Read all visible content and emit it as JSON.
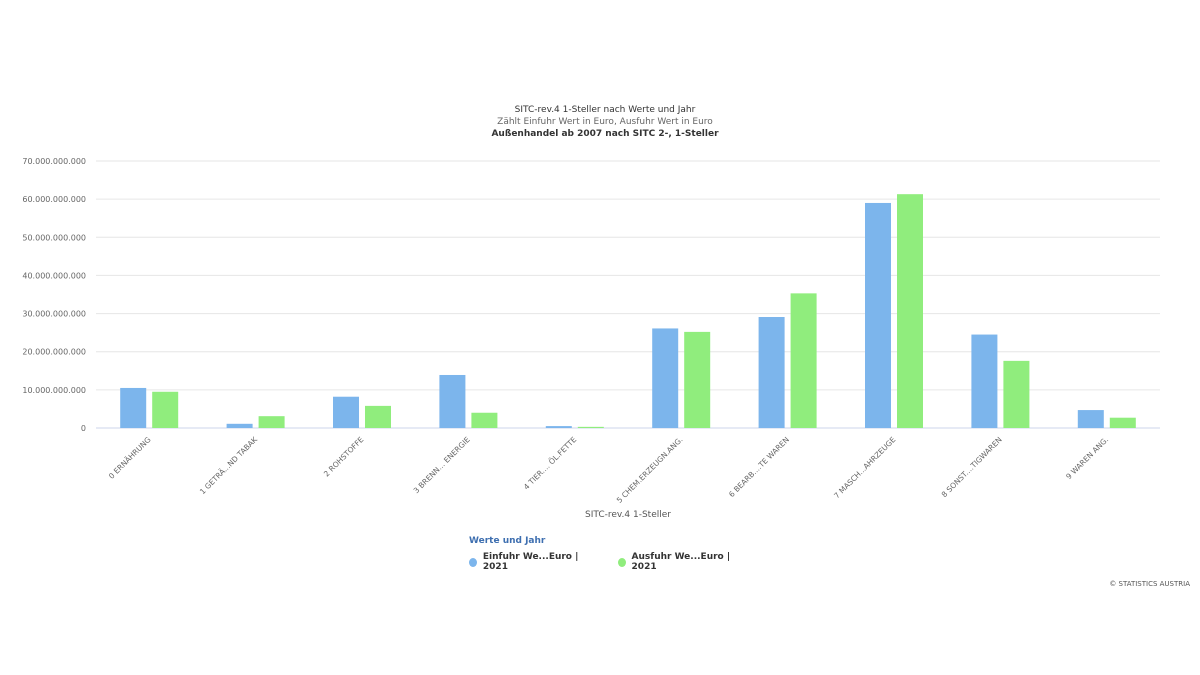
{
  "chart_data": {
    "type": "bar",
    "title": "SITC-rev.4 1-Steller nach Werte und Jahr",
    "subtitle": "Zählt Einfuhr Wert in Euro, Ausfuhr Wert in Euro",
    "subtitle2": "Außenhandel ab 2007 nach SITC 2-, 1-Steller",
    "xlabel": "SITC-rev.4 1-Steller",
    "ylabel": "",
    "ylim": [
      0,
      70000000000
    ],
    "yticks": [
      0,
      10000000000,
      20000000000,
      30000000000,
      40000000000,
      50000000000,
      60000000000,
      70000000000
    ],
    "ytick_labels": [
      "0",
      "10.000.000.000",
      "20.000.000.000",
      "30.000.000.000",
      "40.000.000.000",
      "50.000.000.000",
      "60.000.000.000",
      "70.000.000.000"
    ],
    "categories": [
      "0 ERNÄHRUNG",
      "1 GETRÄ...ND TABAK",
      "2 ROHSTOFFE",
      "3 BRENN... ENERGIE",
      "4 TIER.... ÖL.FETTE",
      "5 CHEM.ERZEUGN.ANG.",
      "6 BEARB....TE WAREN",
      "7 MASCH...AHRZEUGE",
      "8 SONST....TIGWAREN",
      "9 WAREN ANG."
    ],
    "series": [
      {
        "name": "Einfuhr We...Euro | 2021",
        "color": "#7cb5ec",
        "values": [
          10500000000,
          1100000000,
          8200000000,
          13900000000,
          500000000,
          26100000000,
          29100000000,
          59000000000,
          24500000000,
          4700000000
        ]
      },
      {
        "name": "Ausfuhr We...Euro | 2021",
        "color": "#90ed7d",
        "values": [
          9500000000,
          3100000000,
          5800000000,
          4000000000,
          300000000,
          25200000000,
          35300000000,
          61300000000,
          17600000000,
          2700000000
        ]
      }
    ],
    "grid": true,
    "legend_position": "bottom-center",
    "legend_title": "Werte und Jahr"
  },
  "credit": "© STATISTICS AUSTRIA"
}
